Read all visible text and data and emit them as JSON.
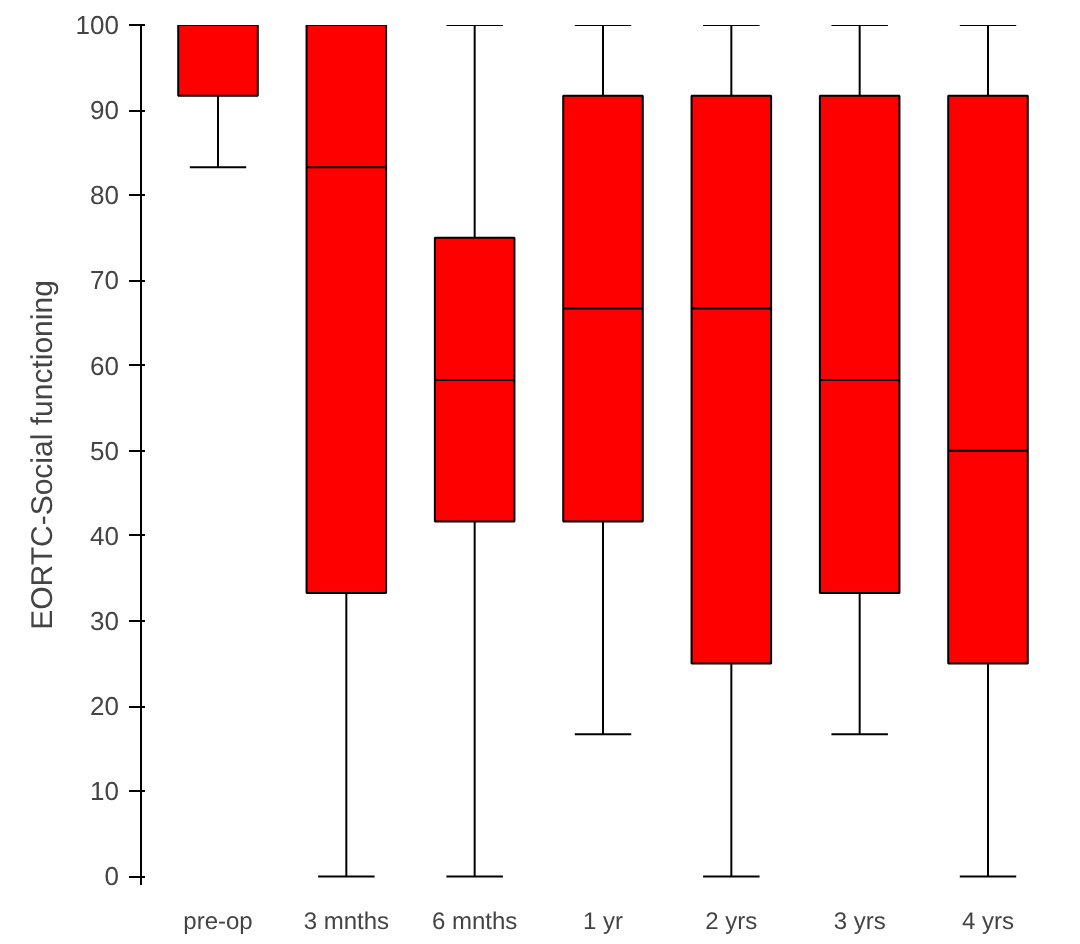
{
  "chart_data": {
    "type": "box",
    "ylabel": "EORTC-Social functioning",
    "categories": [
      "pre-op",
      "3 mnths",
      "6 mnths",
      "1 yr",
      "2 yrs",
      "3 yrs",
      "4 yrs"
    ],
    "series": [
      {
        "color": "#ff0000",
        "boxes": [
          {
            "low": 83.3,
            "q1": 91.7,
            "median": 100,
            "q3": 100,
            "high": 100
          },
          {
            "low": 0,
            "q1": 33.3,
            "median": 83.3,
            "q3": 100,
            "high": 100
          },
          {
            "low": 0,
            "q1": 41.7,
            "median": 58.3,
            "q3": 75,
            "high": 100
          },
          {
            "low": 16.7,
            "q1": 41.7,
            "median": 66.7,
            "q3": 91.7,
            "high": 100
          },
          {
            "low": 0,
            "q1": 25,
            "median": 66.7,
            "q3": 91.7,
            "high": 100
          },
          {
            "low": 16.7,
            "q1": 33.3,
            "median": 58.3,
            "q3": 91.7,
            "high": 100
          },
          {
            "low": 0,
            "q1": 25,
            "median": 50,
            "q3": 91.7,
            "high": 100
          }
        ]
      }
    ],
    "ylim": [
      -1,
      100
    ],
    "yticks": [
      0,
      10,
      20,
      30,
      40,
      50,
      60,
      70,
      80,
      90,
      100
    ],
    "grid": false
  }
}
